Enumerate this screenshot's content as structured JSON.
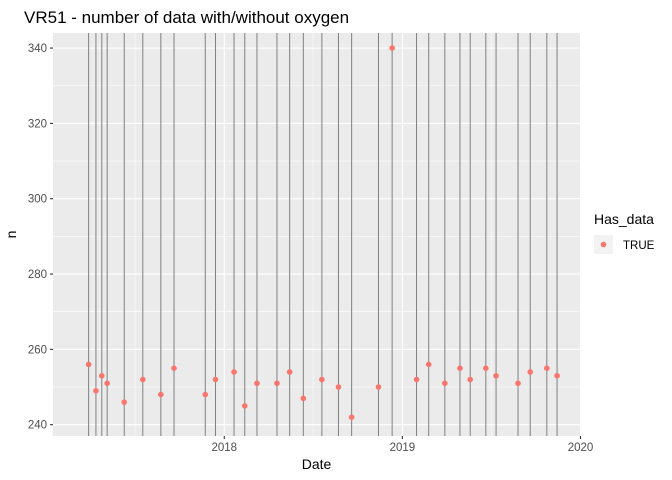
{
  "chart_data": {
    "type": "scatter",
    "title": "VR51 - number of data with/without oxygen",
    "xlabel": "Date",
    "ylabel": "n",
    "x_axis": {
      "kind": "date",
      "range": [
        "2017-01-15",
        "2019-12-31"
      ],
      "ticks": [
        "2018",
        "2019",
        "2020"
      ]
    },
    "y_axis": {
      "range": [
        237,
        344
      ],
      "ticks": [
        "240",
        "260",
        "280",
        "300",
        "320",
        "340"
      ]
    },
    "grid": true,
    "legend": {
      "title": "Has_data",
      "position": "right",
      "entries": [
        "TRUE"
      ]
    },
    "series": [
      {
        "name": "TRUE",
        "color": "#F8766D",
        "points": [
          {
            "x": "2017-03-29",
            "y": 256
          },
          {
            "x": "2017-04-13",
            "y": 249
          },
          {
            "x": "2017-04-25",
            "y": 253
          },
          {
            "x": "2017-05-06",
            "y": 251
          },
          {
            "x": "2017-06-10",
            "y": 246
          },
          {
            "x": "2017-07-18",
            "y": 252
          },
          {
            "x": "2017-08-24",
            "y": 248
          },
          {
            "x": "2017-09-20",
            "y": 255
          },
          {
            "x": "2017-11-23",
            "y": 248
          },
          {
            "x": "2017-12-14",
            "y": 252
          },
          {
            "x": "2018-01-21",
            "y": 254
          },
          {
            "x": "2018-02-12",
            "y": 245
          },
          {
            "x": "2018-03-09",
            "y": 251
          },
          {
            "x": "2018-04-19",
            "y": 251
          },
          {
            "x": "2018-05-15",
            "y": 254
          },
          {
            "x": "2018-06-12",
            "y": 247
          },
          {
            "x": "2018-07-20",
            "y": 252
          },
          {
            "x": "2018-08-23",
            "y": 250
          },
          {
            "x": "2018-09-19",
            "y": 242
          },
          {
            "x": "2018-11-13",
            "y": 250
          },
          {
            "x": "2018-12-11",
            "y": 340
          },
          {
            "x": "2019-01-30",
            "y": 252
          },
          {
            "x": "2019-02-24",
            "y": 256
          },
          {
            "x": "2019-03-29",
            "y": 251
          },
          {
            "x": "2019-04-29",
            "y": 255
          },
          {
            "x": "2019-05-20",
            "y": 252
          },
          {
            "x": "2019-06-21",
            "y": 255
          },
          {
            "x": "2019-07-12",
            "y": 253
          },
          {
            "x": "2019-08-26",
            "y": 251
          },
          {
            "x": "2019-09-20",
            "y": 254
          },
          {
            "x": "2019-10-24",
            "y": 255
          },
          {
            "x": "2019-11-14",
            "y": 253
          }
        ]
      }
    ],
    "vertical_lines": [
      "2017-03-29",
      "2017-04-13",
      "2017-04-25",
      "2017-05-06",
      "2017-06-10",
      "2017-07-18",
      "2017-08-24",
      "2017-09-20",
      "2017-11-23",
      "2017-12-14",
      "2018-01-21",
      "2018-02-12",
      "2018-03-09",
      "2018-04-19",
      "2018-05-15",
      "2018-06-12",
      "2018-07-20",
      "2018-08-23",
      "2018-09-19",
      "2018-11-13",
      "2018-12-11",
      "2019-01-30",
      "2019-02-24",
      "2019-03-29",
      "2019-04-29",
      "2019-05-20",
      "2019-06-21",
      "2019-07-12",
      "2019-08-26",
      "2019-09-20",
      "2019-10-24",
      "2019-11-14"
    ],
    "colors": {
      "panel_background": "#EBEBEB",
      "grid_major": "#FFFFFF",
      "vertical_line": "#808080",
      "point": "#F8766D"
    }
  }
}
